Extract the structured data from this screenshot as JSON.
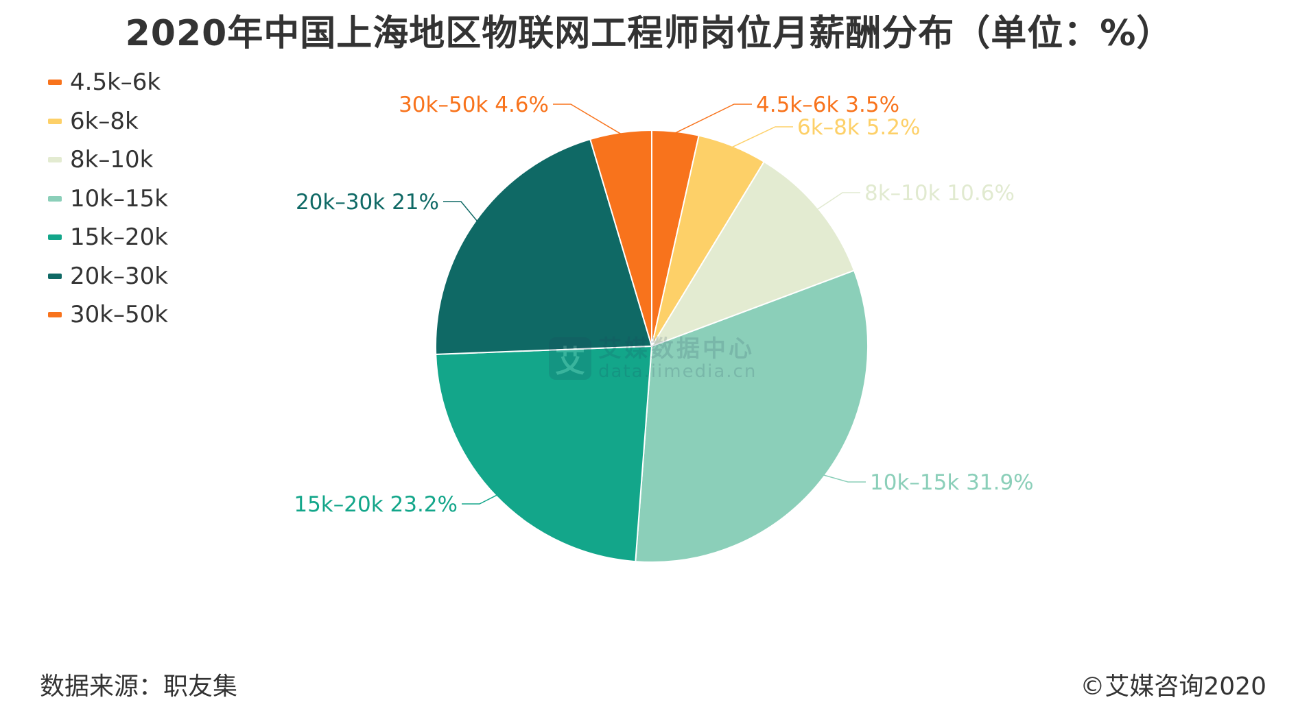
{
  "title": "2020年中国上海地区物联网工程师岗位月薪酬分布（单位：%）",
  "source": "数据来源：职友集",
  "copyright": "©艾媒咨询2020",
  "watermark": {
    "cn": "艾媒数据中心",
    "en": "data.iimedia.cn",
    "logo_char": "艾"
  },
  "chart_data": {
    "type": "pie",
    "title": "2020年中国上海地区物联网工程师岗位月薪酬分布（单位：%）",
    "unit": "%",
    "legend_position": "top-left",
    "slices": [
      {
        "label": "4.5k-6k",
        "value": 3.5,
        "color": "#f8731c",
        "data_label": "4.5k–6k 3.5%",
        "legend": "4.5k–6k"
      },
      {
        "label": "6k-8k",
        "value": 5.2,
        "color": "#fdd068",
        "data_label": "6k–8k 5.2%",
        "legend": "6k–8k"
      },
      {
        "label": "8k-10k",
        "value": 10.6,
        "color": "#e3ebd1",
        "data_label": "8k–10k 10.6%",
        "legend": "8k–10k"
      },
      {
        "label": "10k-15k",
        "value": 31.9,
        "color": "#8bcfb9",
        "data_label": "10k–15k 31.9%",
        "legend": "10k–15k"
      },
      {
        "label": "15k-20k",
        "value": 23.2,
        "color": "#13a68a",
        "data_label": "15k–20k 23.2%",
        "legend": "15k–20k"
      },
      {
        "label": "20k-30k",
        "value": 21,
        "color": "#0f6965",
        "data_label": "20k–30k 21%",
        "legend": "20k–30k"
      },
      {
        "label": "30k-50k",
        "value": 4.6,
        "color": "#f8731c",
        "data_label": "30k–50k 4.6%",
        "legend": "30k–50k"
      }
    ]
  }
}
